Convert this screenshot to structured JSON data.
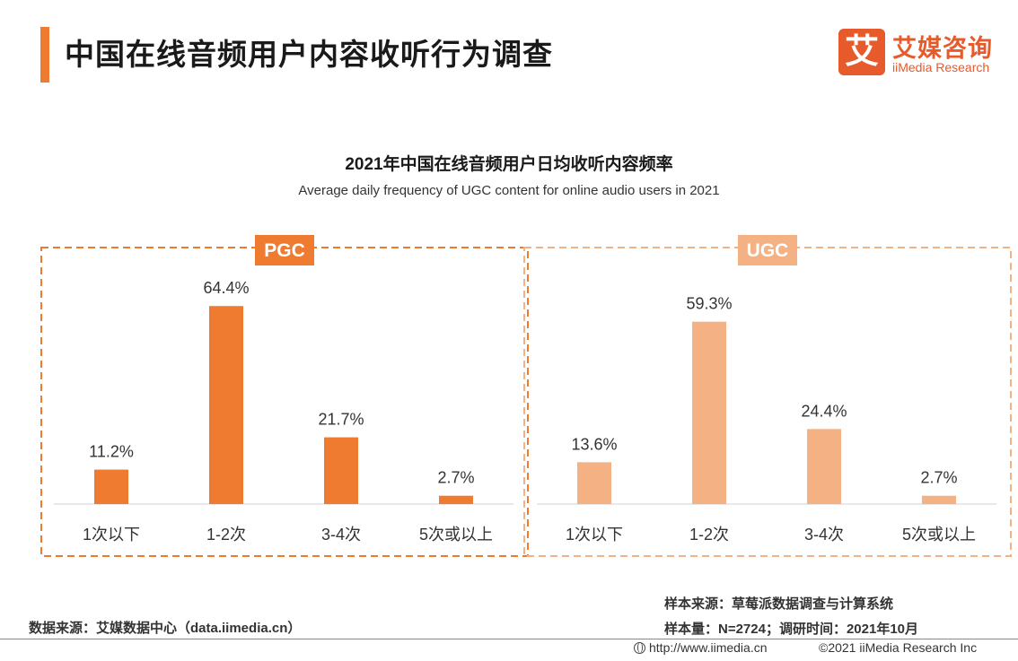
{
  "header": {
    "title": "中国在线音频用户内容收听行为调查"
  },
  "logo": {
    "mark": "艾",
    "name_cn": "艾媒咨询",
    "name_en": "iiMedia Research"
  },
  "chart_title": "2021年中国在线音频用户日均收听内容频率",
  "chart_subtitle": "Average daily frequency of UGC content for online audio users in 2021",
  "chart_data": [
    {
      "type": "bar",
      "title": "PGC",
      "categories": [
        "1次以下",
        "1-2次",
        "3-4次",
        "5次或以上"
      ],
      "values": [
        11.2,
        64.4,
        21.7,
        2.7
      ],
      "value_labels": [
        "11.2%",
        "64.4%",
        "21.7%",
        "2.7%"
      ],
      "unit": "%",
      "ylim": [
        0,
        70
      ],
      "color": "#ee7b30",
      "title_bg": "#ee7b30",
      "frame_color": "#ee7b30",
      "grid": false,
      "legend": "none"
    },
    {
      "type": "bar",
      "title": "UGC",
      "categories": [
        "1次以下",
        "1-2次",
        "3-4次",
        "5次或以上"
      ],
      "values": [
        13.6,
        59.3,
        24.4,
        2.7
      ],
      "value_labels": [
        "13.6%",
        "59.3%",
        "24.4%",
        "2.7%"
      ],
      "unit": "%",
      "ylim": [
        0,
        70
      ],
      "color": "#f4b183",
      "title_bg": "#f4b183",
      "frame_color": "#f4b183",
      "grid": false,
      "legend": "none"
    }
  ],
  "footer": {
    "source_left": "数据来源：艾媒数据中心（data.iimedia.cn）",
    "sample_source": "样本来源：草莓派数据调查与计算系统",
    "sample_size": "样本量：N=2724；调研时间：2021年10月",
    "url": "http://www.iimedia.cn",
    "copyright": "©2021  iiMedia Research  Inc"
  }
}
